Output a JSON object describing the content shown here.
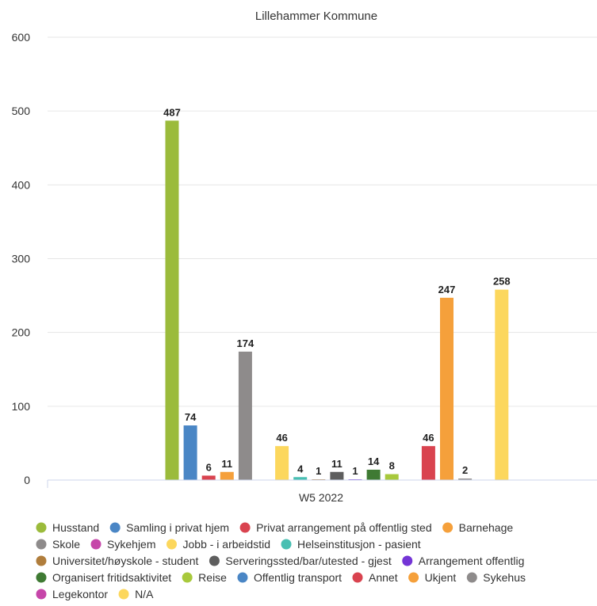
{
  "chart_data": {
    "type": "bar",
    "title": "Lillehammer Kommune",
    "xlabel": "",
    "ylabel": "",
    "categories": [
      "W5 2022"
    ],
    "ylim": [
      0,
      600
    ],
    "yticks": [
      0,
      100,
      200,
      300,
      400,
      500,
      600
    ],
    "grid": true,
    "legend_position": "bottom",
    "series": [
      {
        "name": "Husstand",
        "color": "#9bbb3b",
        "values": [
          487
        ]
      },
      {
        "name": "Samling i privat hjem",
        "color": "#4a86c5",
        "values": [
          74
        ]
      },
      {
        "name": "Privat arrangement på offentlig sted",
        "color": "#d9434f",
        "values": [
          6
        ]
      },
      {
        "name": "Barnehage",
        "color": "#f5a03b",
        "values": [
          11
        ]
      },
      {
        "name": "Skole",
        "color": "#8e8b8b",
        "values": [
          174
        ]
      },
      {
        "name": "Sykehjem",
        "color": "#c646a9",
        "values": [
          null
        ]
      },
      {
        "name": "Jobb - i arbeidstid",
        "color": "#fcd75d",
        "values": [
          46
        ]
      },
      {
        "name": "Helseinstitusjon - pasient",
        "color": "#48bfb2",
        "values": [
          4
        ]
      },
      {
        "name": "Universitet/høyskole - student",
        "color": "#b07d3c",
        "values": [
          1
        ]
      },
      {
        "name": "Serveringssted/bar/utested - gjest",
        "color": "#5e5e5e",
        "values": [
          11
        ]
      },
      {
        "name": "Arrangement offentlig",
        "color": "#7435d6",
        "values": [
          1
        ]
      },
      {
        "name": "Organisert fritidsaktivitet",
        "color": "#3f7a33",
        "values": [
          14
        ]
      },
      {
        "name": "Reise",
        "color": "#a8c93c",
        "values": [
          8
        ]
      },
      {
        "name": "Offentlig transport",
        "color": "#4a86c5",
        "values": [
          null
        ]
      },
      {
        "name": "Annet",
        "color": "#d9434f",
        "values": [
          46
        ]
      },
      {
        "name": "Ukjent",
        "color": "#f5a03b",
        "values": [
          247
        ]
      },
      {
        "name": "Sykehus",
        "color": "#8e8b8b",
        "values": [
          2
        ]
      },
      {
        "name": "Legekontor",
        "color": "#c646a9",
        "values": [
          null
        ]
      },
      {
        "name": "N/A",
        "color": "#fcd75d",
        "values": [
          258
        ]
      }
    ]
  }
}
